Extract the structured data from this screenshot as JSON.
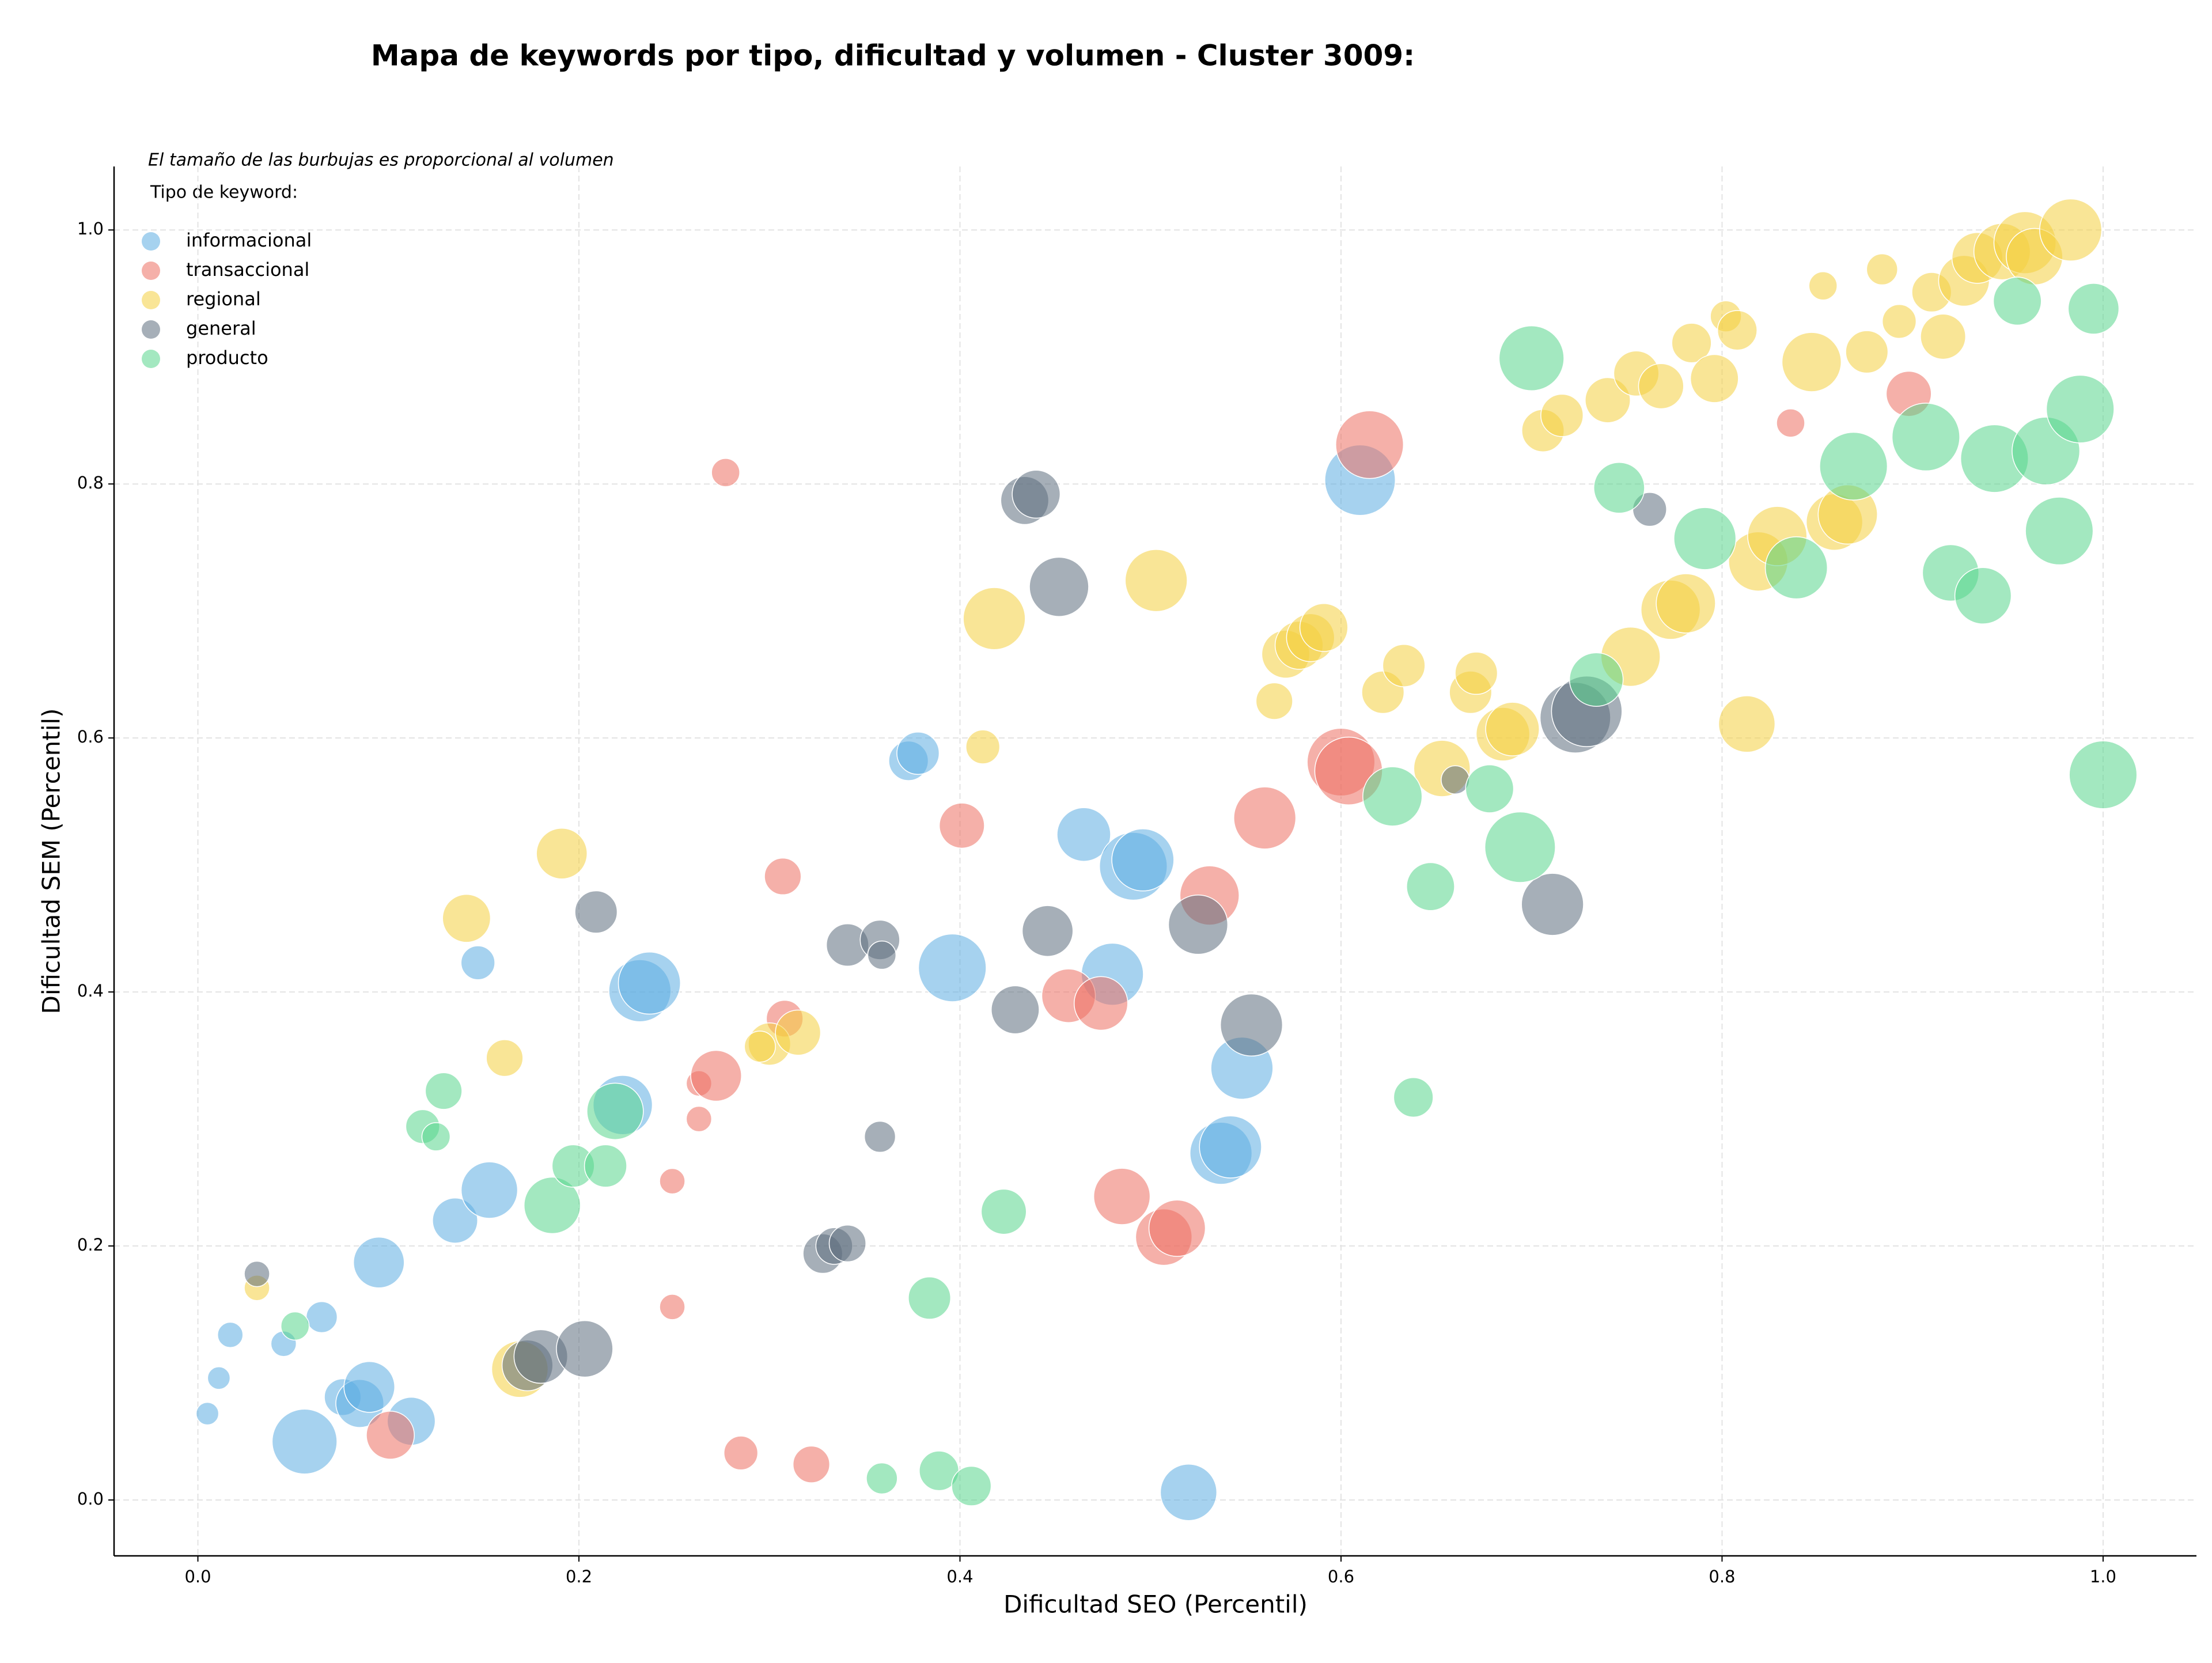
{
  "chart_data": {
    "type": "scatter",
    "title": "Mapa de keywords por tipo, dificultad y volumen - Cluster 3009:",
    "x_label": "Dificultad SEO (Percentil)",
    "y_label": "Dificultad SEM (Percentil)",
    "note": "El tamaño de las burbujas es proporcional al volumen",
    "legend_title": "Tipo de keyword:",
    "legend_position": "upper left",
    "grid": true,
    "xlim": [
      -0.044,
      1.049
    ],
    "ylim": [
      -0.044,
      1.05
    ],
    "xticks": [
      {
        "value": 0,
        "label": "0.0"
      },
      0.2,
      0.4,
      0.6,
      0.8,
      {
        "value": 1,
        "label": "1.0"
      }
    ],
    "yticks": [
      {
        "value": 0,
        "label": "0.0"
      },
      0.2,
      0.4,
      0.6,
      0.8,
      {
        "value": 1,
        "label": "1.0"
      }
    ],
    "series": [
      {
        "name": "informacional",
        "color": "#5dade2",
        "x": [
          0.005,
          0.011,
          0.017,
          0.045,
          0.056,
          0.065,
          0.076,
          0.085,
          0.09,
          0.095,
          0.112,
          0.135,
          0.153,
          0.147,
          0.232,
          0.237,
          0.223,
          0.373,
          0.378,
          0.396,
          0.465,
          0.491,
          0.496,
          0.48,
          0.52,
          0.537,
          0.542,
          0.548,
          0.61
        ],
        "values": [
          0.068,
          0.096,
          0.13,
          0.123,
          0.046,
          0.144,
          0.081,
          0.076,
          0.089,
          0.187,
          0.062,
          0.22,
          0.244,
          0.423,
          0.401,
          0.407,
          0.311,
          0.582,
          0.588,
          0.419,
          0.524,
          0.499,
          0.504,
          0.414,
          0.006,
          0.273,
          0.278,
          0.34,
          0.803
        ],
        "sizes": [
          64,
          64,
          81,
          81,
          529,
          121,
          169,
          289,
          324,
          324,
          289,
          256,
          400,
          144,
          484,
          484,
          441,
          196,
          225,
          576,
          361,
          576,
          484,
          484,
          400,
          484,
          484,
          484,
          625
        ]
      },
      {
        "name": "transaccional",
        "color": "#ec7063",
        "x": [
          0.101,
          0.249,
          0.249,
          0.263,
          0.263,
          0.272,
          0.277,
          0.285,
          0.307,
          0.308,
          0.322,
          0.401,
          0.457,
          0.474,
          0.485,
          0.507,
          0.514,
          0.531,
          0.56,
          0.6,
          0.604,
          0.615,
          0.836,
          0.898
        ],
        "values": [
          0.051,
          0.251,
          0.152,
          0.328,
          0.3,
          0.334,
          0.809,
          0.037,
          0.491,
          0.379,
          0.028,
          0.531,
          0.397,
          0.391,
          0.239,
          0.207,
          0.214,
          0.476,
          0.537,
          0.581,
          0.574,
          0.831,
          0.848,
          0.871
        ],
        "sizes": [
          289,
          81,
          81,
          81,
          81,
          324,
          100,
          144,
          169,
          169,
          169,
          256,
          361,
          361,
          400,
          400,
          400,
          441,
          484,
          576,
          576,
          576,
          100,
          256
        ]
      },
      {
        "name": "regional",
        "color": "#f4d03f",
        "x": [
          0.031,
          0.161,
          0.141,
          0.191,
          0.169,
          0.3,
          0.315,
          0.295,
          0.412,
          0.418,
          0.503,
          0.565,
          0.571,
          0.578,
          0.584,
          0.591,
          0.622,
          0.633,
          0.653,
          0.668,
          0.671,
          0.685,
          0.69,
          0.706,
          0.716,
          0.74,
          0.752,
          0.755,
          0.768,
          0.773,
          0.781,
          0.784,
          0.796,
          0.802,
          0.808,
          0.813,
          0.819,
          0.829,
          0.847,
          0.853,
          0.859,
          0.866,
          0.876,
          0.884,
          0.893,
          0.91,
          0.916,
          0.927,
          0.934,
          0.947,
          0.959,
          0.964,
          0.983
        ],
        "values": [
          0.167,
          0.348,
          0.458,
          0.509,
          0.103,
          0.359,
          0.368,
          0.357,
          0.593,
          0.694,
          0.724,
          0.629,
          0.666,
          0.673,
          0.679,
          0.687,
          0.636,
          0.657,
          0.576,
          0.636,
          0.651,
          0.603,
          0.607,
          0.842,
          0.854,
          0.866,
          0.664,
          0.887,
          0.877,
          0.701,
          0.706,
          0.911,
          0.883,
          0.932,
          0.921,
          0.611,
          0.739,
          0.759,
          0.896,
          0.956,
          0.77,
          0.776,
          0.904,
          0.969,
          0.928,
          0.951,
          0.916,
          0.96,
          0.978,
          0.983,
          0.99,
          0.979,
          1.0
        ],
        "sizes": [
          81,
          169,
          289,
          324,
          400,
          225,
          256,
          121,
          144,
          484,
          484,
          169,
          289,
          289,
          289,
          289,
          225,
          225,
          400,
          225,
          225,
          361,
          361,
          225,
          225,
          256,
          441,
          256,
          256,
          441,
          441,
          196,
          289,
          121,
          196,
          400,
          441,
          441,
          441,
          100,
          400,
          441,
          225,
          121,
          144,
          196,
          256,
          324,
          324,
          400,
          484,
          400,
          484
        ]
      },
      {
        "name": "general",
        "color": "#5d6d7e",
        "x": [
          0.031,
          0.173,
          0.18,
          0.203,
          0.209,
          0.328,
          0.334,
          0.341,
          0.341,
          0.358,
          0.359,
          0.358,
          0.429,
          0.434,
          0.44,
          0.446,
          0.452,
          0.525,
          0.553,
          0.66,
          0.711,
          0.723,
          0.729,
          0.762
        ],
        "values": [
          0.178,
          0.106,
          0.113,
          0.119,
          0.463,
          0.194,
          0.2,
          0.202,
          0.437,
          0.441,
          0.429,
          0.286,
          0.386,
          0.787,
          0.792,
          0.448,
          0.719,
          0.453,
          0.374,
          0.567,
          0.469,
          0.616,
          0.621,
          0.78
        ],
        "sizes": [
          81,
          324,
          361,
          400,
          225,
          196,
          169,
          169,
          225,
          196,
          100,
          121,
          289,
          289,
          289,
          324,
          441,
          441,
          484,
          100,
          484,
          625,
          625,
          144
        ]
      },
      {
        "name": "producto",
        "color": "#58d68d",
        "x": [
          0.051,
          0.118,
          0.125,
          0.129,
          0.186,
          0.197,
          0.214,
          0.219,
          0.359,
          0.384,
          0.389,
          0.406,
          0.423,
          0.627,
          0.638,
          0.647,
          0.678,
          0.694,
          0.7,
          0.734,
          0.746,
          0.791,
          0.839,
          0.869,
          0.907,
          0.92,
          0.937,
          0.943,
          0.955,
          0.97,
          0.977,
          0.988,
          0.995,
          1.0
        ],
        "values": [
          0.137,
          0.294,
          0.286,
          0.322,
          0.232,
          0.263,
          0.263,
          0.306,
          0.017,
          0.159,
          0.023,
          0.011,
          0.227,
          0.554,
          0.317,
          0.483,
          0.56,
          0.514,
          0.899,
          0.646,
          0.797,
          0.757,
          0.734,
          0.814,
          0.837,
          0.73,
          0.712,
          0.82,
          0.944,
          0.826,
          0.763,
          0.859,
          0.938,
          0.571
        ],
        "sizes": [
          100,
          144,
          100,
          169,
          400,
          225,
          225,
          400,
          121,
          225,
          196,
          196,
          256,
          441,
          196,
          289,
          289,
          625,
          529,
          361,
          324,
          484,
          484,
          576,
          576,
          400,
          400,
          576,
          289,
          576,
          576,
          576,
          324,
          576
        ]
      }
    ]
  }
}
